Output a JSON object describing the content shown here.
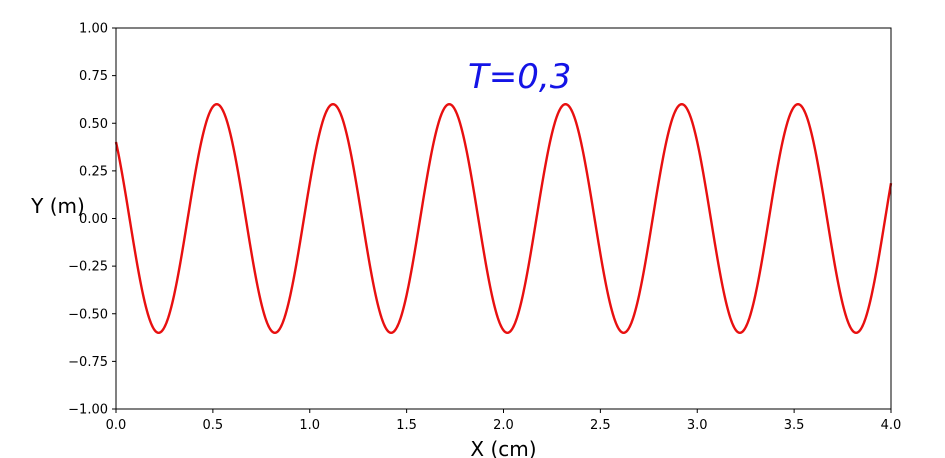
{
  "chart_data": {
    "type": "line",
    "title": "",
    "xlabel": "X (cm)",
    "ylabel": "Y (m)",
    "xlim": [
      0.0,
      4.0
    ],
    "ylim": [
      -1.0,
      1.0
    ],
    "grid": false,
    "xticks": [
      "0.0",
      "0.5",
      "1.0",
      "1.5",
      "2.0",
      "2.5",
      "3.0",
      "3.5",
      "4.0"
    ],
    "yticks": [
      "1.00",
      "0.75",
      "0.50",
      "0.25",
      "0.00",
      "−0.25",
      "−0.50",
      "−0.75",
      "−1.00"
    ],
    "annotation": "T=0,3",
    "series": [
      {
        "color": "#e81010",
        "function": "0.6*cos(2*pi*(x-0.52)/0.6)",
        "amplitude": 0.6,
        "period": 0.6,
        "first_peak_x": 0.52,
        "peaks_x": [
          0.52,
          1.12,
          1.72,
          2.32,
          2.92,
          3.52
        ],
        "troughs_x": [
          0.22,
          0.82,
          1.42,
          2.02,
          2.62,
          3.22,
          3.82
        ]
      }
    ]
  }
}
